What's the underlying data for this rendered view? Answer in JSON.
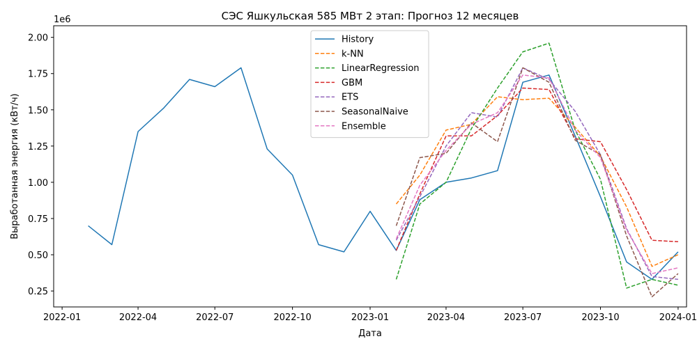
{
  "chart_data": {
    "type": "line",
    "title": "СЭС Яшкульская 585 МВт 2 этап: Прогноз 12 месяцев",
    "xlabel": "Дата",
    "ylabel": "Выработанная энергия (кВт/ч)",
    "y_multiplier_label": "1e6",
    "xlim": [
      "2021-12-22",
      "2024-01-11"
    ],
    "ylim": [
      0.14,
      2.08
    ],
    "x_ticks": [
      "2022-01",
      "2022-04",
      "2022-07",
      "2022-10",
      "2023-01",
      "2023-04",
      "2023-07",
      "2023-10",
      "2024-01"
    ],
    "y_ticks": [
      "0.25",
      "0.50",
      "0.75",
      "1.00",
      "1.25",
      "1.50",
      "1.75",
      "2.00"
    ],
    "grid": false,
    "legend_position": "top-center",
    "series": [
      {
        "name": "History",
        "color": "#1f77b4",
        "dashed": false,
        "x": [
          "2022-02",
          "2022-03",
          "2022-04",
          "2022-05",
          "2022-06",
          "2022-07",
          "2022-08",
          "2022-09",
          "2022-10",
          "2022-11",
          "2022-12",
          "2023-01",
          "2023-02",
          "2023-03",
          "2023-04",
          "2023-05",
          "2023-06",
          "2023-07",
          "2023-08",
          "2023-09",
          "2023-10",
          "2023-11",
          "2023-12",
          "2024-01"
        ],
        "values": [
          0.7,
          0.57,
          1.35,
          1.51,
          1.71,
          1.66,
          1.79,
          1.23,
          1.05,
          0.57,
          0.52,
          0.8,
          0.53,
          0.88,
          1.0,
          1.03,
          1.08,
          1.69,
          1.74,
          1.32,
          0.9,
          0.45,
          0.33,
          0.52
        ]
      },
      {
        "name": "k-NN",
        "color": "#ff7f0e",
        "dashed": true,
        "x": [
          "2023-02",
          "2023-03",
          "2023-04",
          "2023-05",
          "2023-06",
          "2023-07",
          "2023-08",
          "2023-09",
          "2023-10",
          "2023-11",
          "2023-12",
          "2024-01"
        ],
        "values": [
          0.85,
          1.05,
          1.36,
          1.4,
          1.59,
          1.57,
          1.58,
          1.38,
          1.18,
          0.83,
          0.42,
          0.5
        ]
      },
      {
        "name": "LinearRegression",
        "color": "#2ca02c",
        "dashed": true,
        "x": [
          "2023-02",
          "2023-03",
          "2023-04",
          "2023-05",
          "2023-06",
          "2023-07",
          "2023-08",
          "2023-09",
          "2023-10",
          "2023-11",
          "2023-12",
          "2024-01"
        ],
        "values": [
          0.33,
          0.85,
          1.0,
          1.37,
          1.65,
          1.9,
          1.96,
          1.36,
          1.02,
          0.27,
          0.33,
          0.29
        ]
      },
      {
        "name": "GBM",
        "color": "#d62728",
        "dashed": true,
        "x": [
          "2023-02",
          "2023-03",
          "2023-04",
          "2023-05",
          "2023-06",
          "2023-07",
          "2023-08",
          "2023-09",
          "2023-10",
          "2023-11",
          "2023-12",
          "2024-01"
        ],
        "values": [
          0.53,
          0.92,
          1.32,
          1.32,
          1.46,
          1.65,
          1.64,
          1.3,
          1.28,
          0.95,
          0.6,
          0.59
        ]
      },
      {
        "name": "ETS",
        "color": "#9467bd",
        "dashed": true,
        "x": [
          "2023-02",
          "2023-03",
          "2023-04",
          "2023-05",
          "2023-06",
          "2023-07",
          "2023-08",
          "2023-09",
          "2023-10",
          "2023-11",
          "2023-12",
          "2024-01"
        ],
        "values": [
          0.6,
          0.9,
          1.25,
          1.48,
          1.45,
          1.79,
          1.71,
          1.49,
          1.19,
          0.68,
          0.35,
          0.33
        ]
      },
      {
        "name": "SeasonalNaive",
        "color": "#8c564b",
        "dashed": true,
        "x": [
          "2023-02",
          "2023-03",
          "2023-04",
          "2023-05",
          "2023-06",
          "2023-07",
          "2023-08",
          "2023-09",
          "2023-10",
          "2023-11",
          "2023-12",
          "2024-01"
        ],
        "values": [
          0.7,
          1.17,
          1.2,
          1.41,
          1.28,
          1.79,
          1.69,
          1.29,
          1.19,
          0.63,
          0.21,
          0.37
        ]
      },
      {
        "name": "Ensemble",
        "color": "#e377c2",
        "dashed": true,
        "x": [
          "2023-02",
          "2023-03",
          "2023-04",
          "2023-05",
          "2023-06",
          "2023-07",
          "2023-08",
          "2023-09",
          "2023-10",
          "2023-11",
          "2023-12",
          "2024-01"
        ],
        "values": [
          0.61,
          0.98,
          1.22,
          1.4,
          1.48,
          1.74,
          1.72,
          1.36,
          1.17,
          0.67,
          0.37,
          0.41
        ]
      }
    ]
  }
}
